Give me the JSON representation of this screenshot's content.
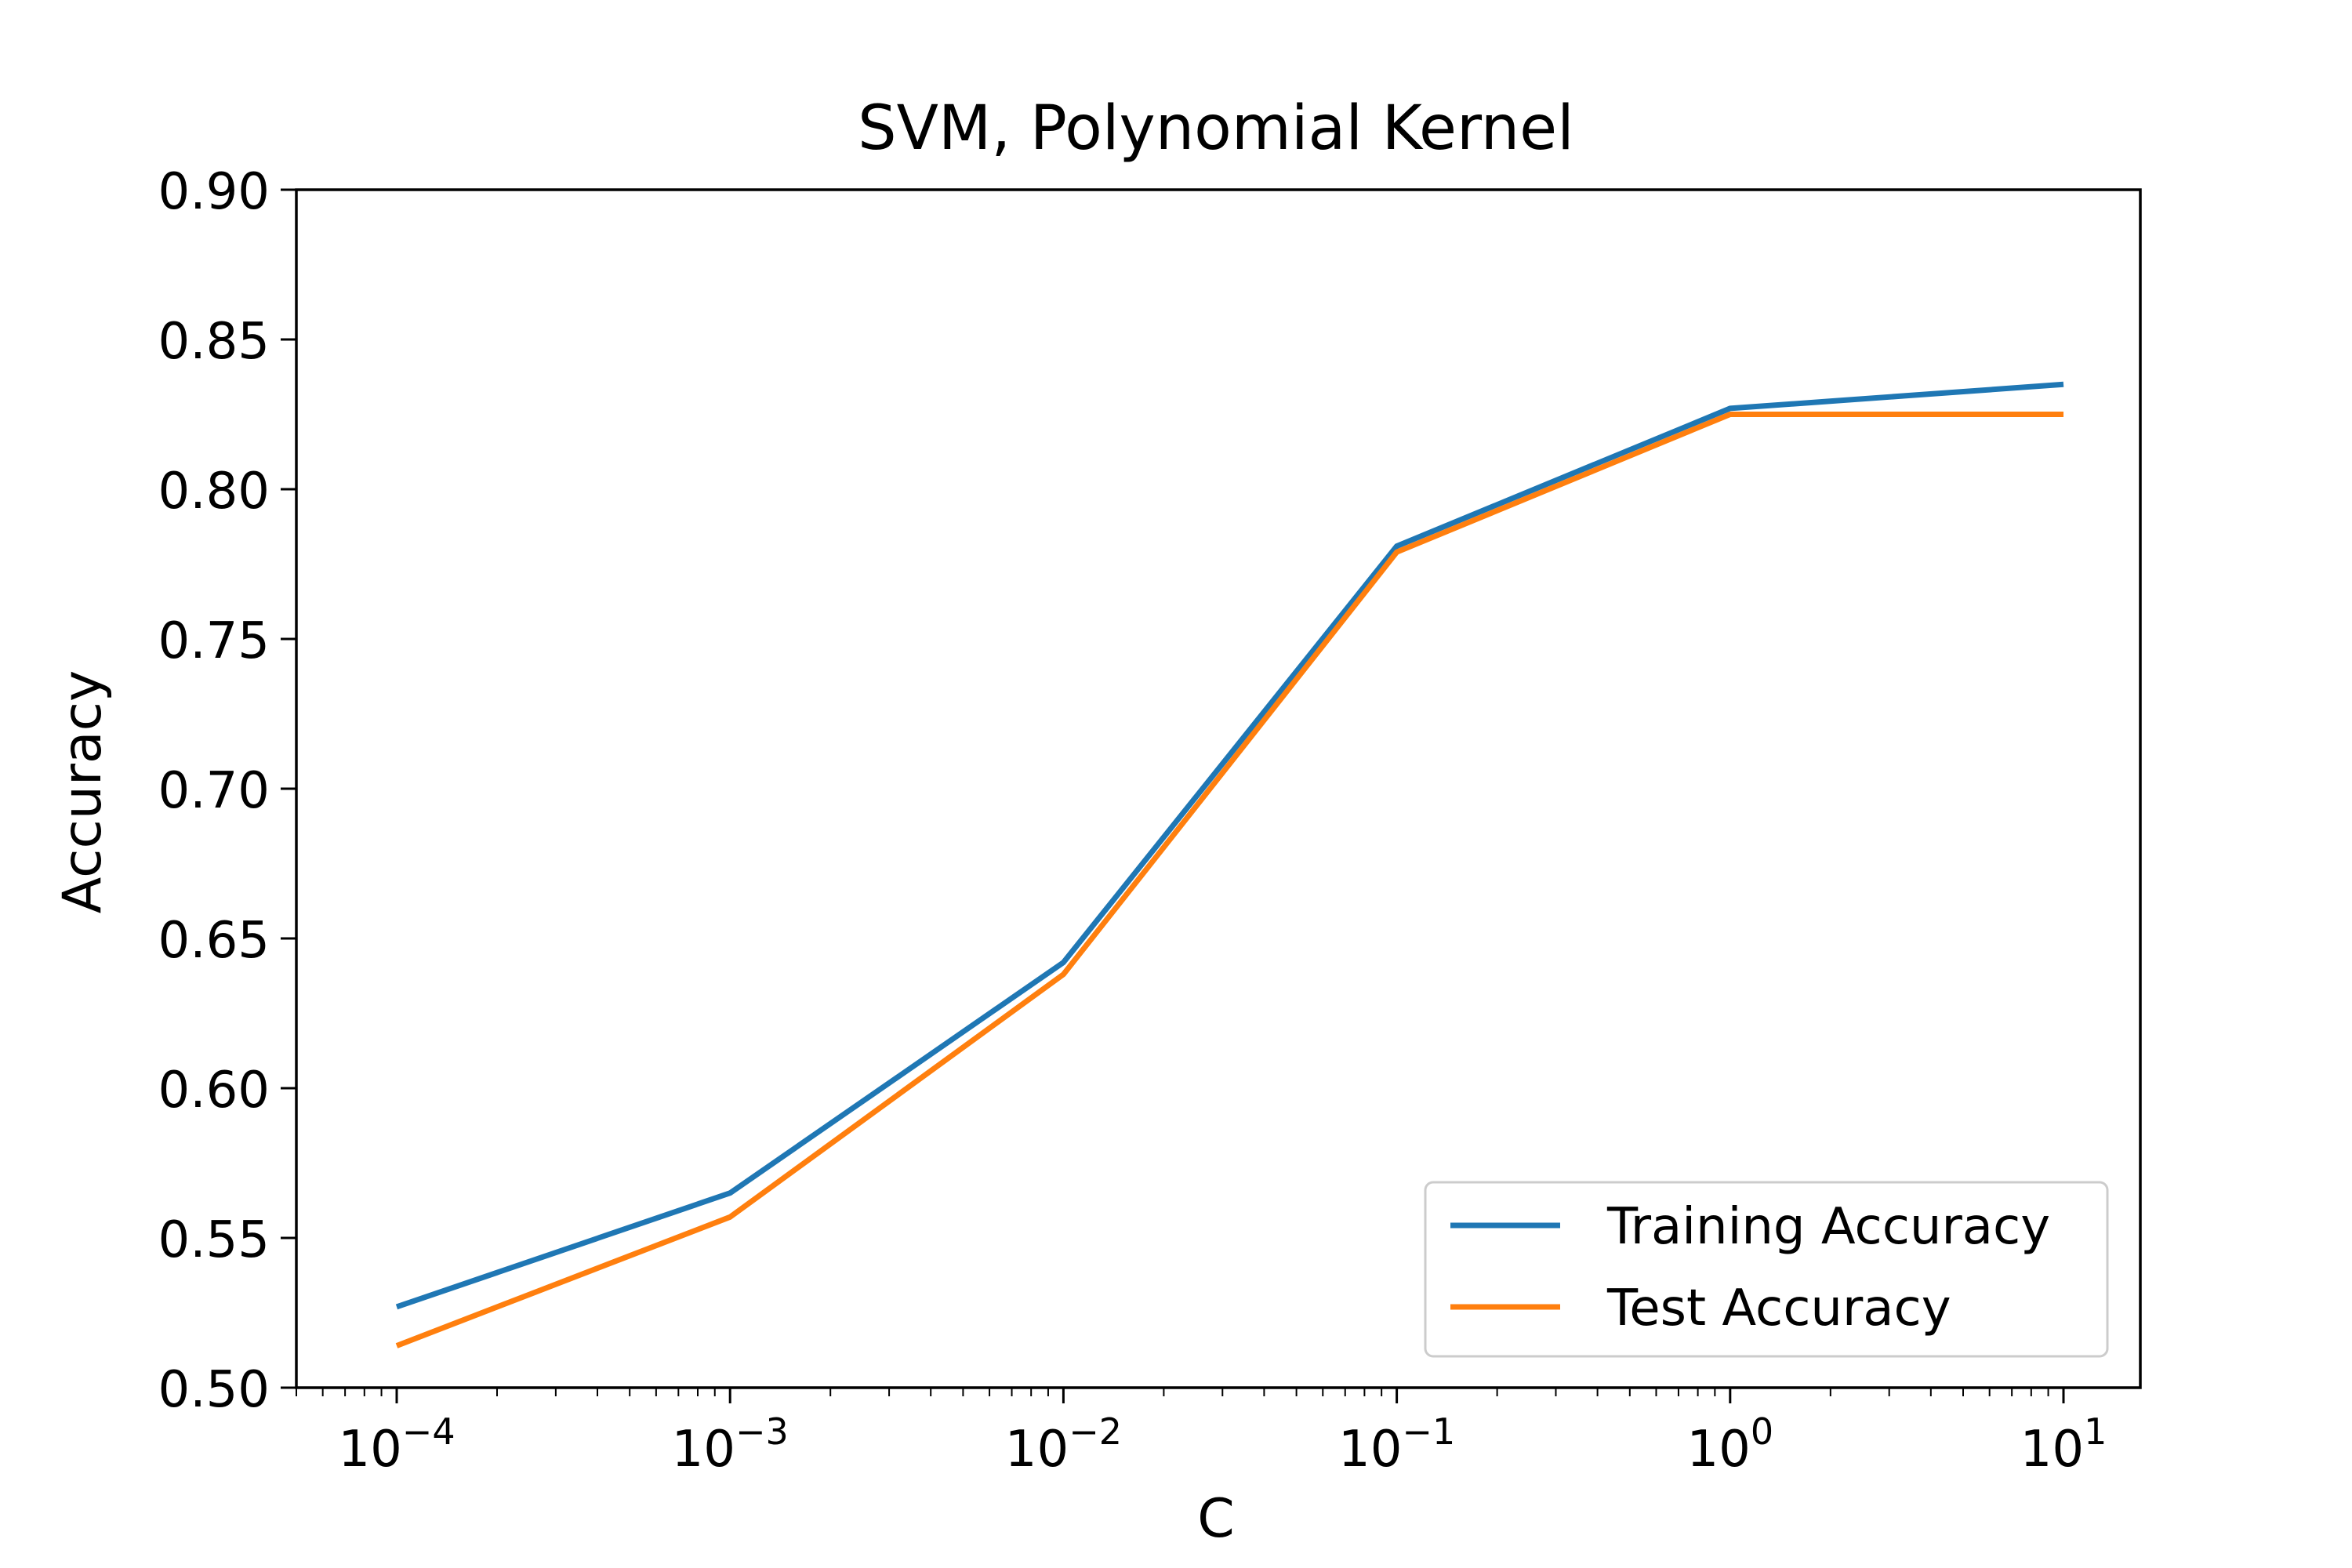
{
  "chart_data": {
    "type": "line",
    "title": "SVM, Polynomial Kernel",
    "xlabel": "C",
    "ylabel": "Accuracy",
    "xscale": "log",
    "x": [
      0.0001,
      0.001,
      0.01,
      0.1,
      1,
      10
    ],
    "xlim": [
      5e-05,
      17
    ],
    "ylim": [
      0.5,
      0.9
    ],
    "yticks": [
      "0.50",
      "0.55",
      "0.60",
      "0.65",
      "0.70",
      "0.75",
      "0.80",
      "0.85",
      "0.90"
    ],
    "xticks": [
      {
        "value": 0.0001,
        "base": "10",
        "exp": "−4"
      },
      {
        "value": 0.001,
        "base": "10",
        "exp": "−3"
      },
      {
        "value": 0.01,
        "base": "10",
        "exp": "−2"
      },
      {
        "value": 0.1,
        "base": "10",
        "exp": "−1"
      },
      {
        "value": 1,
        "base": "10",
        "exp": "0"
      },
      {
        "value": 10,
        "base": "10",
        "exp": "1"
      }
    ],
    "series": [
      {
        "name": "Training Accuracy",
        "color": "#1f77b4",
        "values": [
          0.527,
          0.565,
          0.642,
          0.781,
          0.827,
          0.835
        ]
      },
      {
        "name": "Test Accuracy",
        "color": "#ff7f0e",
        "values": [
          0.514,
          0.557,
          0.638,
          0.779,
          0.825,
          0.825
        ]
      }
    ],
    "legend_position": "lower-right",
    "grid": false
  }
}
